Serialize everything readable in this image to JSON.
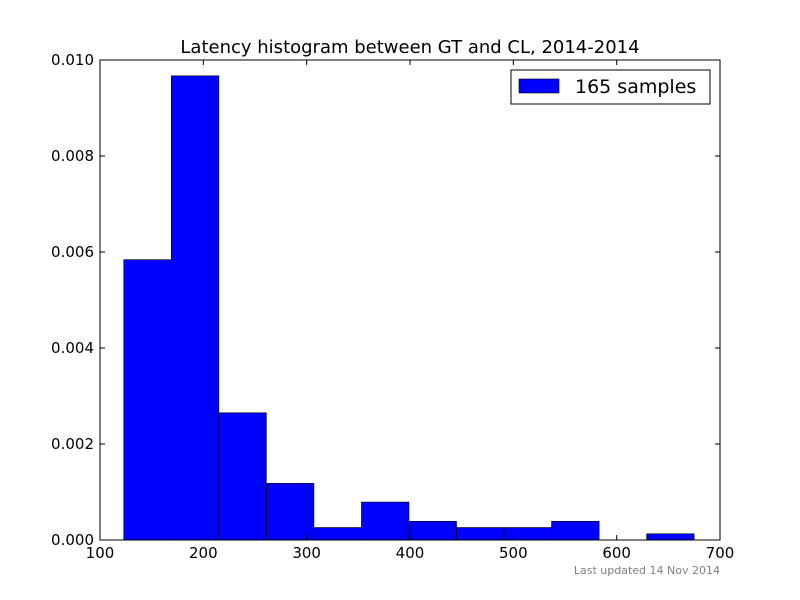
{
  "chart_data": {
    "type": "bar",
    "title": "Latency histogram between GT and CL, 2014-2014",
    "xlabel": "",
    "ylabel": "",
    "xlim": [
      100,
      700
    ],
    "ylim": [
      0,
      0.01
    ],
    "x_ticks": [
      "100",
      "200",
      "300",
      "400",
      "500",
      "600",
      "700"
    ],
    "y_ticks": [
      "0.000",
      "0.002",
      "0.004",
      "0.006",
      "0.008",
      "0.010"
    ],
    "grid": false,
    "legend_placement": "top-right",
    "bar_color": "#0000ff",
    "edge_color": "#000000",
    "series": [
      {
        "name": "165 samples",
        "bins": [
          {
            "x0": 123,
            "x1": 169,
            "value": 0.00584
          },
          {
            "x0": 169,
            "x1": 215,
            "value": 0.00967
          },
          {
            "x0": 215,
            "x1": 261,
            "value": 0.00265
          },
          {
            "x0": 261,
            "x1": 307,
            "value": 0.00118
          },
          {
            "x0": 307,
            "x1": 353,
            "value": 0.00026
          },
          {
            "x0": 353,
            "x1": 399,
            "value": 0.00079
          },
          {
            "x0": 399,
            "x1": 445,
            "value": 0.00039
          },
          {
            "x0": 445,
            "x1": 491,
            "value": 0.00026
          },
          {
            "x0": 491,
            "x1": 537,
            "value": 0.00026
          },
          {
            "x0": 537,
            "x1": 583,
            "value": 0.00039
          },
          {
            "x0": 583,
            "x1": 629,
            "value": 0.0
          },
          {
            "x0": 629,
            "x1": 675,
            "value": 0.00013
          }
        ]
      }
    ]
  },
  "footnote": "Last updated 14 Nov 2014"
}
